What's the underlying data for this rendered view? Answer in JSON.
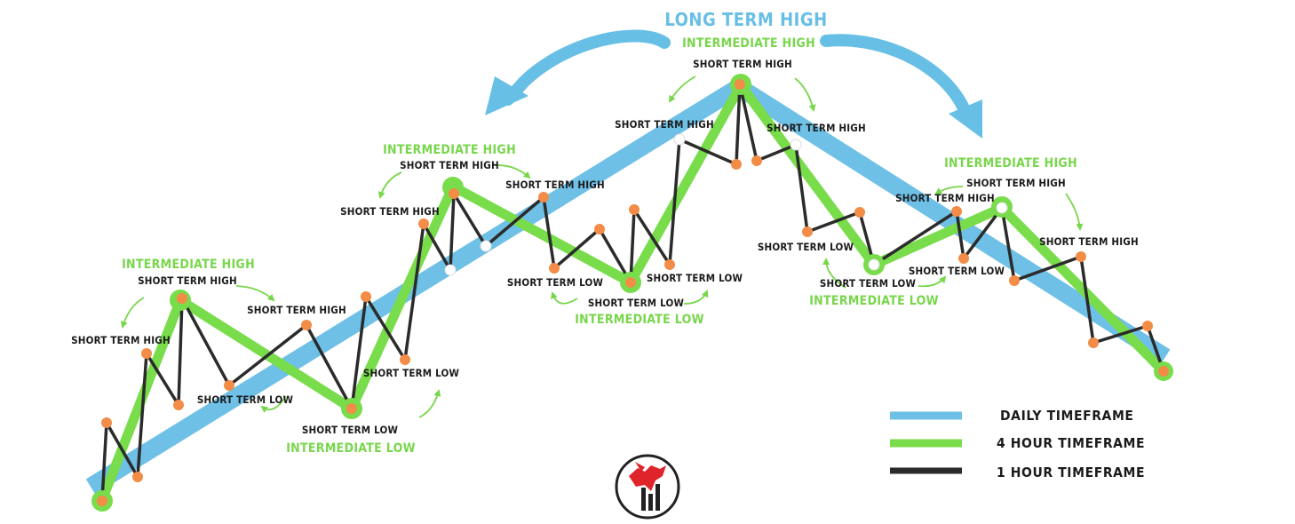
{
  "colors": {
    "daily": "#6ec0e6",
    "four_hour": "#78dc4b",
    "one_hour": "#2b2b2b",
    "pivot": "#f28c46",
    "label_green": "#78d64b",
    "arrow_blue": "#68bfe6",
    "logo_red": "#e0242b"
  },
  "labels": {
    "long_term_high": "LONG TERM HIGH",
    "intermediate_high": "INTERMEDIATE HIGH",
    "intermediate_low": "INTERMEDIATE LOW",
    "short_term_high": "SHORT TERM HIGH",
    "short_term_low": "SHORT TERM LOW"
  },
  "legend": [
    {
      "label": "DAILY TIMEFRAME",
      "color": "#6ec0e6"
    },
    {
      "label": "4 HOUR TIMEFRAME",
      "color": "#78dc4b"
    },
    {
      "label": "1 HOUR TIMEFRAME",
      "color": "#2b2b2b"
    }
  ],
  "logo": {
    "icon": "dragon-bars-logo-icon"
  }
}
